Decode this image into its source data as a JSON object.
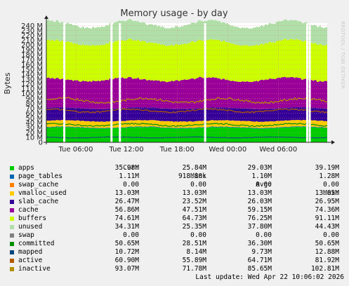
{
  "chart_data": {
    "type": "area",
    "title": "Memory usage - by day",
    "ylabel": "Bytes",
    "watermark": "RRDTOOL / TOBI OETIKER",
    "y_ticks": [
      "0",
      "10 M",
      "20 M",
      "30 M",
      "40 M",
      "50 M",
      "60 M",
      "70 M",
      "80 M",
      "90 M",
      "100 M",
      "110 M",
      "120 M",
      "130 M",
      "140 M",
      "150 M",
      "160 M",
      "170 M",
      "180 M",
      "190 M",
      "200 M",
      "210 M",
      "220 M",
      "230 M",
      "240 M"
    ],
    "ylim": [
      0,
      245
    ],
    "x_ticks": [
      "Tue 06:00",
      "Tue 12:00",
      "Tue 18:00",
      "Wed 00:00",
      "Wed 06:00"
    ],
    "gaps_approx_hours": [
      2.0,
      7.6,
      8.6,
      18.7,
      30.8,
      31.1
    ],
    "stacked_series_approx_M": {
      "apps": 30,
      "page_tables": 1.1,
      "slab_cache": 26,
      "cache": 59,
      "buffers": 76,
      "unused": 38
    },
    "line_series_approx_M": {
      "committed": 36,
      "mapped": 10,
      "active": 65,
      "inactive": 86
    },
    "legend_header": {
      "cur": "Cur:",
      "min": "Min:",
      "avg": "Avg:",
      "max": "Max:"
    },
    "legend": [
      {
        "name": "apps",
        "color": "#00cc00",
        "cur": "35.98M",
        "min": "25.84M",
        "avg": "29.03M",
        "max": "39.19M"
      },
      {
        "name": "page_tables",
        "color": "#0066b3",
        "cur": "1.11M",
        "min": "918.80k",
        "avg": "1.10M",
        "max": "1.28M"
      },
      {
        "name": "swap_cache",
        "color": "#ff8000",
        "cur": "0.00",
        "min": "0.00",
        "avg": "0.00",
        "max": "0.00"
      },
      {
        "name": "vmalloc_used",
        "color": "#ffcc00",
        "cur": "13.03M",
        "min": "13.03M",
        "avg": "13.03M",
        "max": "13.05M"
      },
      {
        "name": "slab_cache",
        "color": "#330099",
        "cur": "26.47M",
        "min": "23.52M",
        "avg": "26.03M",
        "max": "26.95M"
      },
      {
        "name": "cache",
        "color": "#990099",
        "cur": "56.86M",
        "min": "47.51M",
        "avg": "59.15M",
        "max": "74.36M"
      },
      {
        "name": "buffers",
        "color": "#ccff00",
        "cur": "74.61M",
        "min": "64.73M",
        "avg": "76.25M",
        "max": "91.11M"
      },
      {
        "name": "unused",
        "color": "#b0dfa8",
        "cur": "34.31M",
        "min": "25.35M",
        "avg": "37.80M",
        "max": "44.43M"
      },
      {
        "name": "swap",
        "color": "#808080",
        "cur": "0.00",
        "min": "0.00",
        "avg": "0.00",
        "max": "0.00"
      },
      {
        "name": "committed",
        "color": "#008f00",
        "cur": "50.65M",
        "min": "28.51M",
        "avg": "36.30M",
        "max": "50.65M"
      },
      {
        "name": "mapped",
        "color": "#00487d",
        "cur": "10.72M",
        "min": "8.14M",
        "avg": "9.73M",
        "max": "12.88M"
      },
      {
        "name": "active",
        "color": "#b35a00",
        "cur": "60.90M",
        "min": "55.89M",
        "avg": "64.71M",
        "max": "81.92M"
      },
      {
        "name": "inactive",
        "color": "#b38f00",
        "cur": "93.07M",
        "min": "71.78M",
        "avg": "85.65M",
        "max": "102.81M"
      }
    ],
    "last_update": "Last update: Wed Apr 22 10:06:02 2026"
  }
}
